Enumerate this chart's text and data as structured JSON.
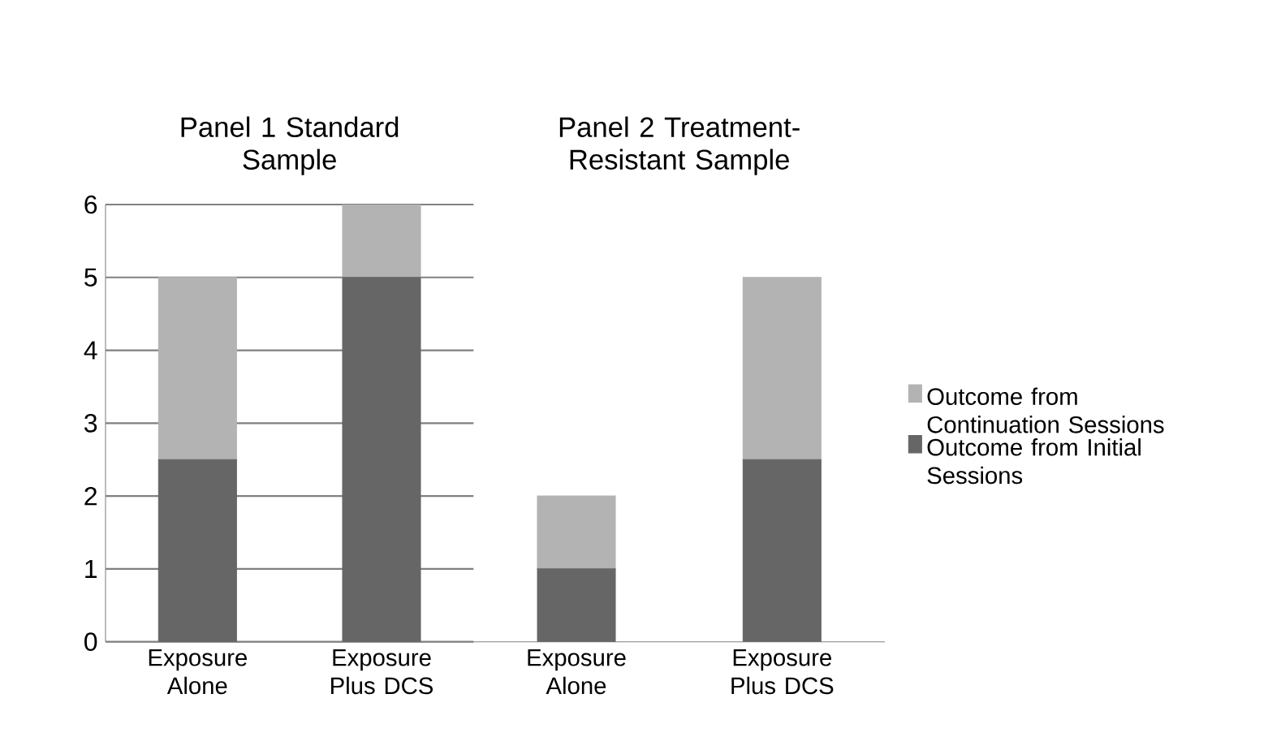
{
  "chart_data": [
    {
      "type": "bar",
      "title": "Panel 1 Standard Sample",
      "categories": [
        "Exposure Alone",
        "Exposure Plus DCS"
      ],
      "stacked": true,
      "series": [
        {
          "color": "#666666",
          "values": [
            2.5,
            5
          ]
        },
        {
          "color": "#b3b3b3",
          "values": [
            2.5,
            1
          ]
        }
      ],
      "ylim": [
        0,
        6
      ],
      "yticks": [
        0,
        1,
        2,
        3,
        4,
        5,
        6
      ],
      "grid": "y"
    },
    {
      "type": "bar",
      "title": "Panel 2 Treatment-Resistant Sample",
      "categories": [
        "Exposure Alone",
        "Exposure Plus DCS"
      ],
      "stacked": true,
      "series": [
        {
          "name": "Outcome from Initial Sessions",
          "color": "#666666",
          "values": [
            1,
            2.5
          ]
        },
        {
          "name": "Outcome from Continuation Sessions",
          "color": "#b3b3b3",
          "values": [
            1,
            2.5
          ]
        }
      ],
      "ylim": [
        0,
        6
      ],
      "yticks": [
        0,
        1,
        2,
        3,
        4,
        5,
        6
      ],
      "grid": "y",
      "tick_labels": "x",
      "legend": "right"
    }
  ]
}
